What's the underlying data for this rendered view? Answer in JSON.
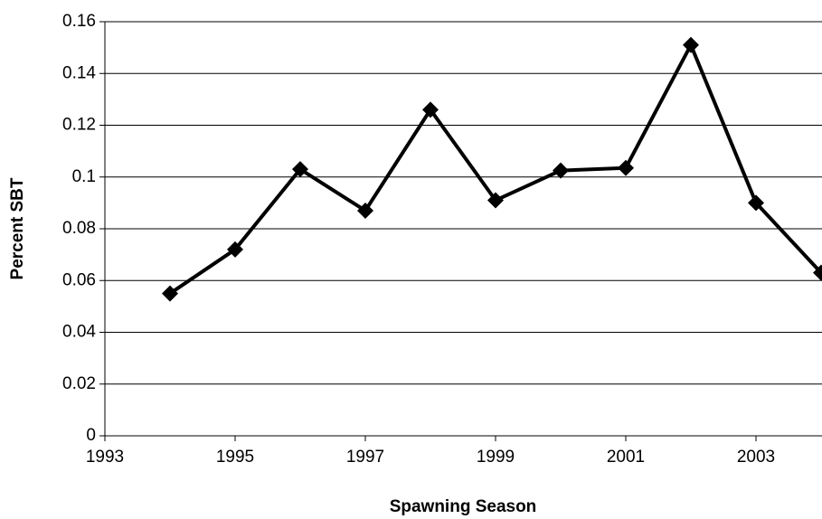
{
  "chart_data": {
    "type": "line",
    "x_label": "Spawning Season",
    "y_label": "Percent SBT",
    "x": [
      1994,
      1995,
      1996,
      1997,
      1998,
      1999,
      2000,
      2001,
      2002,
      2003,
      2004
    ],
    "series": [
      {
        "name": "Percent SBT",
        "color": "#000000",
        "values": [
          0.055,
          0.072,
          0.103,
          0.087,
          0.126,
          0.091,
          0.1025,
          0.1035,
          0.151,
          0.09,
          0.063
        ]
      }
    ],
    "xlim": [
      1993,
      2004
    ],
    "xticks": [
      1993,
      1995,
      1997,
      1999,
      2001,
      2003
    ],
    "ylim": [
      0,
      0.16
    ],
    "yticks": [
      0,
      0.02,
      0.04,
      0.06,
      0.08,
      0.1,
      0.12,
      0.14,
      0.16
    ],
    "grid": true,
    "marker": "diamond"
  }
}
